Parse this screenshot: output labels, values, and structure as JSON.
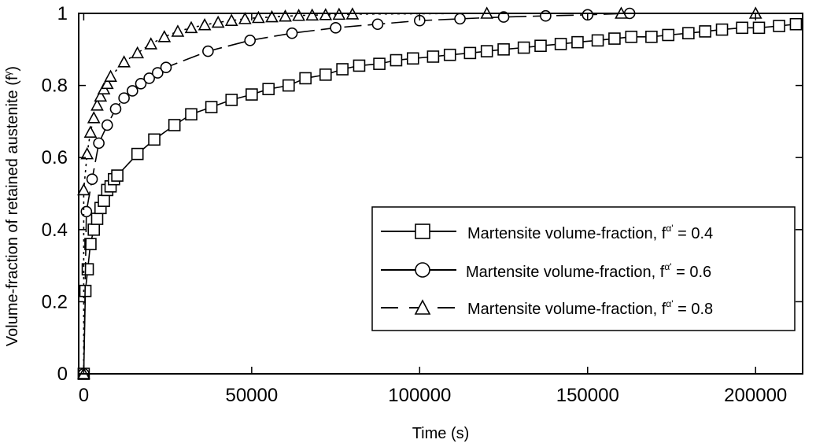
{
  "chart_data": {
    "type": "line",
    "xlabel": "Time (s)",
    "ylabel": "Volume-fraction of retained austenite (f",
    "ylabel_sup": "γ",
    "ylabel_close": ")",
    "xlim": [
      -1500,
      214000
    ],
    "ylim": [
      0,
      1
    ],
    "xticks": [
      0,
      50000,
      100000,
      150000,
      200000
    ],
    "yticks": [
      0,
      0.2,
      0.4,
      0.6,
      0.8,
      1
    ],
    "xtick_labels": [
      "0",
      "50000",
      "100000",
      "150000",
      "200000"
    ],
    "ytick_labels": [
      "0",
      "0.2",
      "0.4",
      "0.6",
      "0.8",
      "1"
    ],
    "legend_position": "center-right",
    "series": [
      {
        "name": "Martensite volume-fraction, f",
        "name_sup": "α'",
        "name_tail": " = 0.4",
        "marker": "square",
        "dash": "solid",
        "x": [
          0,
          500,
          1200,
          2000,
          3000,
          4000,
          5000,
          6000,
          7000,
          8000,
          9000,
          10000,
          16000,
          21000,
          27000,
          32000,
          38000,
          44000,
          50000,
          55000,
          61000,
          66000,
          72000,
          77000,
          82000,
          88000,
          93000,
          98000,
          104000,
          109000,
          115000,
          120000,
          125000,
          131000,
          136000,
          142000,
          147000,
          153000,
          158000,
          163000,
          169000,
          174000,
          180000,
          185000,
          190000,
          196000,
          201000,
          207000,
          212000
        ],
        "y": [
          0,
          0.23,
          0.29,
          0.36,
          0.4,
          0.43,
          0.46,
          0.48,
          0.51,
          0.52,
          0.54,
          0.55,
          0.61,
          0.65,
          0.69,
          0.72,
          0.74,
          0.76,
          0.775,
          0.79,
          0.8,
          0.82,
          0.83,
          0.845,
          0.855,
          0.86,
          0.87,
          0.875,
          0.88,
          0.885,
          0.89,
          0.895,
          0.9,
          0.905,
          0.91,
          0.915,
          0.92,
          0.925,
          0.93,
          0.935,
          0.935,
          0.94,
          0.945,
          0.95,
          0.955,
          0.96,
          0.96,
          0.965,
          0.97
        ]
      },
      {
        "name": "Martensite volume-fraction, f",
        "name_sup": "α'",
        "name_tail": " = 0.6",
        "marker": "circle",
        "dash": "long-dash",
        "x": [
          0,
          800,
          2500,
          4500,
          7000,
          9500,
          12000,
          14500,
          17000,
          19500,
          22000,
          24500,
          37000,
          49500,
          62000,
          75000,
          87500,
          100000,
          112000,
          125000,
          137500,
          150000,
          162500
        ],
        "y": [
          0,
          0.45,
          0.54,
          0.64,
          0.69,
          0.735,
          0.765,
          0.785,
          0.805,
          0.82,
          0.835,
          0.85,
          0.895,
          0.925,
          0.945,
          0.96,
          0.97,
          0.98,
          0.985,
          0.99,
          0.993,
          0.996,
          1.0
        ]
      },
      {
        "name": "Martensite volume-fraction, f",
        "name_sup": "α'",
        "name_tail": " = 0.8",
        "marker": "triangle",
        "dash": "dotted",
        "x": [
          0,
          0,
          1000,
          2000,
          3000,
          4000,
          5000,
          6000,
          7000,
          8000,
          12000,
          16000,
          20000,
          24000,
          28000,
          32000,
          36000,
          40000,
          44000,
          48000,
          52000,
          56000,
          60000,
          64000,
          68000,
          72000,
          76000,
          80000,
          120000,
          160000,
          200000
        ],
        "y": [
          0,
          0.51,
          0.61,
          0.67,
          0.71,
          0.745,
          0.77,
          0.79,
          0.805,
          0.825,
          0.865,
          0.89,
          0.915,
          0.935,
          0.95,
          0.96,
          0.968,
          0.975,
          0.98,
          0.985,
          0.988,
          0.99,
          0.992,
          0.994,
          0.995,
          0.996,
          0.997,
          0.998,
          1.0,
          1.0,
          1.0
        ]
      }
    ]
  }
}
